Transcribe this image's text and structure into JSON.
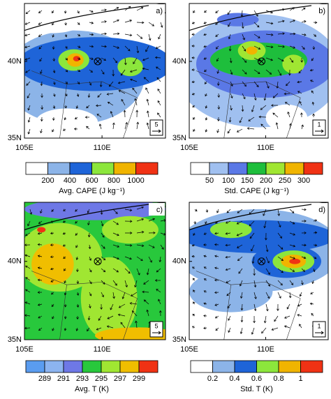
{
  "panels": [
    {
      "label": "a)",
      "lat_labels": [
        "40N",
        "35N"
      ],
      "lon_labels": [
        "105E",
        "110E"
      ],
      "ref_vector": "5",
      "colorbar": {
        "title": "Avg. CAPE (J kg⁻¹)",
        "ticks": [
          200,
          400,
          600,
          800,
          1000
        ],
        "colors": [
          "#ffffff",
          "#8cb4e8",
          "#1e64d8",
          "#8ce63c",
          "#f0b400",
          "#f03214"
        ]
      }
    },
    {
      "label": "b)",
      "lat_labels": [
        "40N",
        "35N"
      ],
      "lon_labels": [
        "105E",
        "110E"
      ],
      "ref_vector": "1",
      "colorbar": {
        "title": "Std. CAPE (J kg⁻¹)",
        "ticks": [
          50,
          100,
          150,
          200,
          250,
          300
        ],
        "colors": [
          "#ffffff",
          "#a0c0f0",
          "#5a78e6",
          "#1ebe3c",
          "#a0e632",
          "#f0b400",
          "#f03214"
        ]
      }
    },
    {
      "label": "c)",
      "lat_labels": [
        "40N",
        "35N"
      ],
      "lon_labels": [
        "105E",
        "110E"
      ],
      "ref_vector": "5",
      "colorbar": {
        "title": "Avg. T (K)",
        "ticks": [
          289,
          291,
          293,
          295,
          297,
          299
        ],
        "colors": [
          "#5a9cf0",
          "#8cb4f0",
          "#6e78e6",
          "#28c83c",
          "#a0e632",
          "#f0be00",
          "#f03214"
        ]
      }
    },
    {
      "label": "d)",
      "lat_labels": [
        "40N",
        "35N"
      ],
      "lon_labels": [
        "105E",
        "110E"
      ],
      "ref_vector": "1",
      "colorbar": {
        "title": "Std. T (K)",
        "ticks": [
          0.2,
          0.4,
          0.6,
          0.8,
          1
        ],
        "colors": [
          "#ffffff",
          "#8cb4e8",
          "#1e64d8",
          "#8ce63c",
          "#f0b400",
          "#f03214"
        ]
      }
    }
  ]
}
